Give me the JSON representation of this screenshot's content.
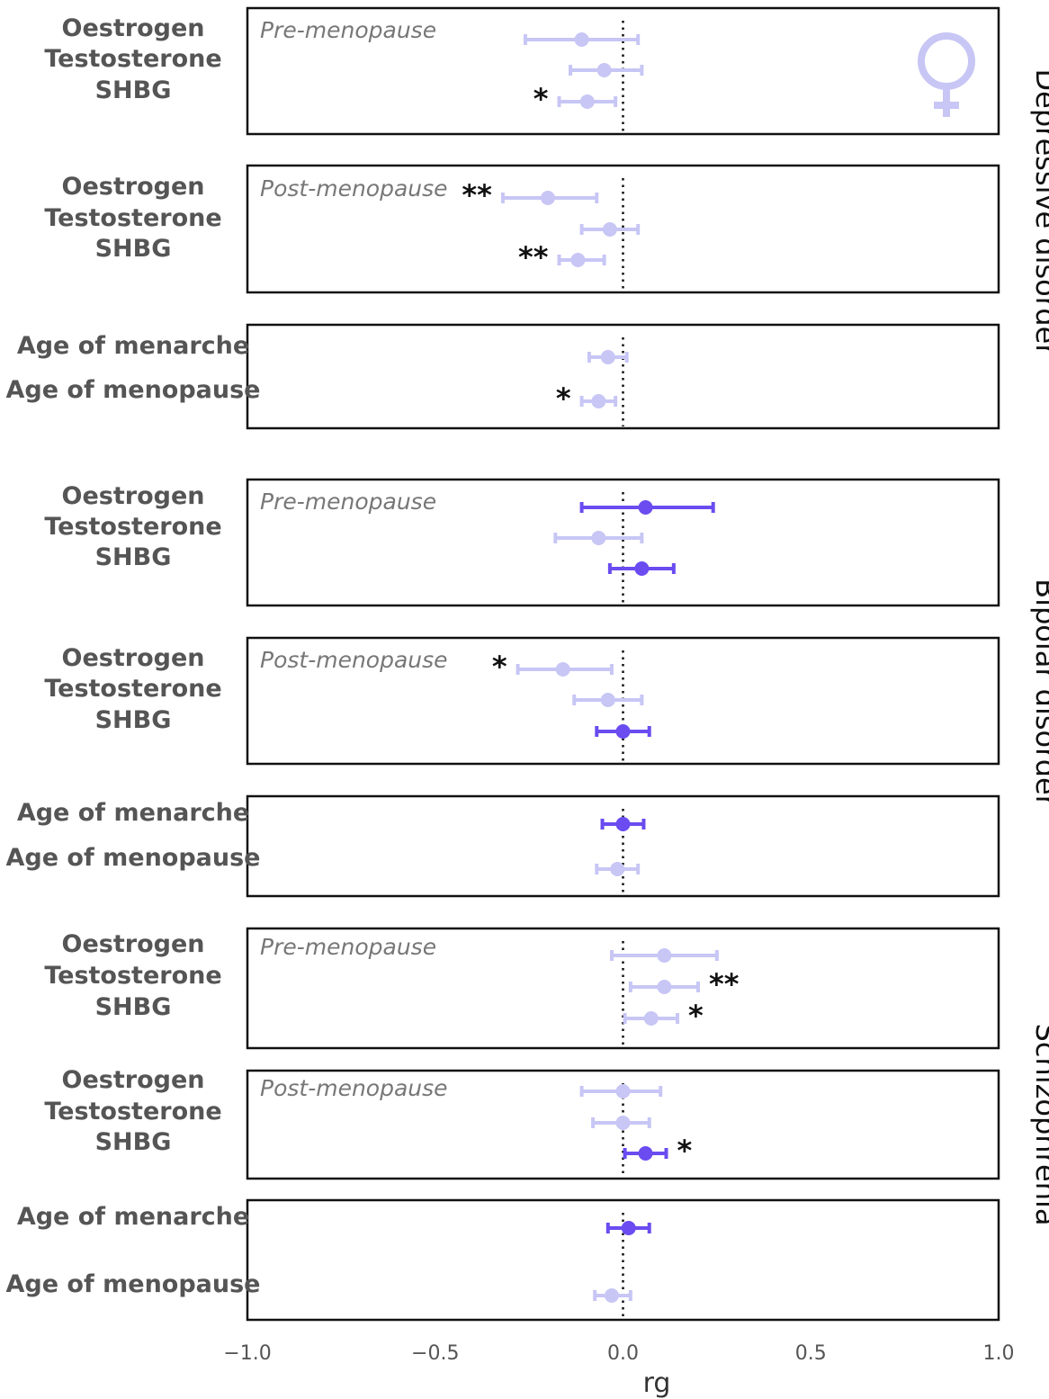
{
  "chart_data": {
    "type": "forest",
    "xlabel": "rg",
    "xlim": [
      -1.0,
      1.0
    ],
    "x_ticks": [
      "−1.0",
      "−0.5",
      "0.0",
      "0.5",
      "1.0"
    ],
    "reference_line": 0.0,
    "colors": {
      "significant": "#6a4cf0",
      "nonsignificant": "#c7c6f5",
      "frame": "#111111"
    },
    "icon": "female-symbol-icon",
    "groups": [
      {
        "name": "Depressive disorder",
        "panels": [
          {
            "label": "Pre-menopause",
            "rows": [
              {
                "trait": "Oestrogen",
                "rg": -0.11,
                "lo": -0.26,
                "hi": 0.04,
                "significant": false,
                "stars": ""
              },
              {
                "trait": "Testosterone",
                "rg": -0.05,
                "lo": -0.14,
                "hi": 0.05,
                "significant": false,
                "stars": ""
              },
              {
                "trait": "SHBG",
                "rg": -0.095,
                "lo": -0.17,
                "hi": -0.02,
                "significant": false,
                "stars": "*"
              }
            ]
          },
          {
            "label": "Post-menopause",
            "rows": [
              {
                "trait": "Oestrogen",
                "rg": -0.2,
                "lo": -0.32,
                "hi": -0.07,
                "significant": false,
                "stars": "**"
              },
              {
                "trait": "Testosterone",
                "rg": -0.035,
                "lo": -0.11,
                "hi": 0.04,
                "significant": false,
                "stars": ""
              },
              {
                "trait": "SHBG",
                "rg": -0.12,
                "lo": -0.17,
                "hi": -0.05,
                "significant": false,
                "stars": "**"
              }
            ]
          },
          {
            "label": "",
            "rows": [
              {
                "trait": "Age of menarche",
                "rg": -0.04,
                "lo": -0.09,
                "hi": 0.01,
                "significant": false,
                "stars": ""
              },
              {
                "trait": "Age of menopause",
                "rg": -0.065,
                "lo": -0.11,
                "hi": -0.02,
                "significant": false,
                "stars": "*"
              }
            ]
          }
        ]
      },
      {
        "name": "Bipolar disorder",
        "panels": [
          {
            "label": "Pre-menopause",
            "rows": [
              {
                "trait": "Oestrogen",
                "rg": 0.06,
                "lo": -0.11,
                "hi": 0.24,
                "significant": true,
                "stars": ""
              },
              {
                "trait": "Testosterone",
                "rg": -0.065,
                "lo": -0.18,
                "hi": 0.05,
                "significant": false,
                "stars": ""
              },
              {
                "trait": "SHBG",
                "rg": 0.05,
                "lo": -0.035,
                "hi": 0.135,
                "significant": true,
                "stars": ""
              }
            ]
          },
          {
            "label": "Post-menopause",
            "rows": [
              {
                "trait": "Oestrogen",
                "rg": -0.16,
                "lo": -0.28,
                "hi": -0.03,
                "significant": false,
                "stars": "*"
              },
              {
                "trait": "Testosterone",
                "rg": -0.04,
                "lo": -0.13,
                "hi": 0.05,
                "significant": false,
                "stars": ""
              },
              {
                "trait": "SHBG",
                "rg": 0.0,
                "lo": -0.07,
                "hi": 0.07,
                "significant": true,
                "stars": ""
              }
            ]
          },
          {
            "label": "",
            "rows": [
              {
                "trait": "Age of menarche",
                "rg": 0.0,
                "lo": -0.055,
                "hi": 0.055,
                "significant": true,
                "stars": ""
              },
              {
                "trait": "Age of menopause",
                "rg": -0.015,
                "lo": -0.07,
                "hi": 0.04,
                "significant": false,
                "stars": ""
              }
            ]
          }
        ]
      },
      {
        "name": "Schizophrenia",
        "panels": [
          {
            "label": "Pre-menopause",
            "rows": [
              {
                "trait": "Oestrogen",
                "rg": 0.11,
                "lo": -0.03,
                "hi": 0.25,
                "significant": false,
                "stars": ""
              },
              {
                "trait": "Testosterone",
                "rg": 0.11,
                "lo": 0.02,
                "hi": 0.2,
                "significant": false,
                "stars": "**"
              },
              {
                "trait": "SHBG",
                "rg": 0.075,
                "lo": 0.005,
                "hi": 0.145,
                "significant": false,
                "stars": "*"
              }
            ]
          },
          {
            "label": "Post-menopause",
            "rows": [
              {
                "trait": "Oestrogen",
                "rg": 0.0,
                "lo": -0.11,
                "hi": 0.1,
                "significant": false,
                "stars": ""
              },
              {
                "trait": "Testosterone",
                "rg": 0.0,
                "lo": -0.08,
                "hi": 0.07,
                "significant": false,
                "stars": ""
              },
              {
                "trait": "SHBG",
                "rg": 0.06,
                "lo": 0.005,
                "hi": 0.115,
                "significant": true,
                "stars": "*"
              }
            ]
          },
          {
            "label": "",
            "rows": [
              {
                "trait": "Age of menarche",
                "rg": 0.015,
                "lo": -0.04,
                "hi": 0.07,
                "significant": true,
                "stars": ""
              },
              {
                "trait": "Age of menopause",
                "rg": -0.03,
                "lo": -0.075,
                "hi": 0.02,
                "significant": false,
                "stars": ""
              }
            ]
          }
        ]
      }
    ]
  }
}
